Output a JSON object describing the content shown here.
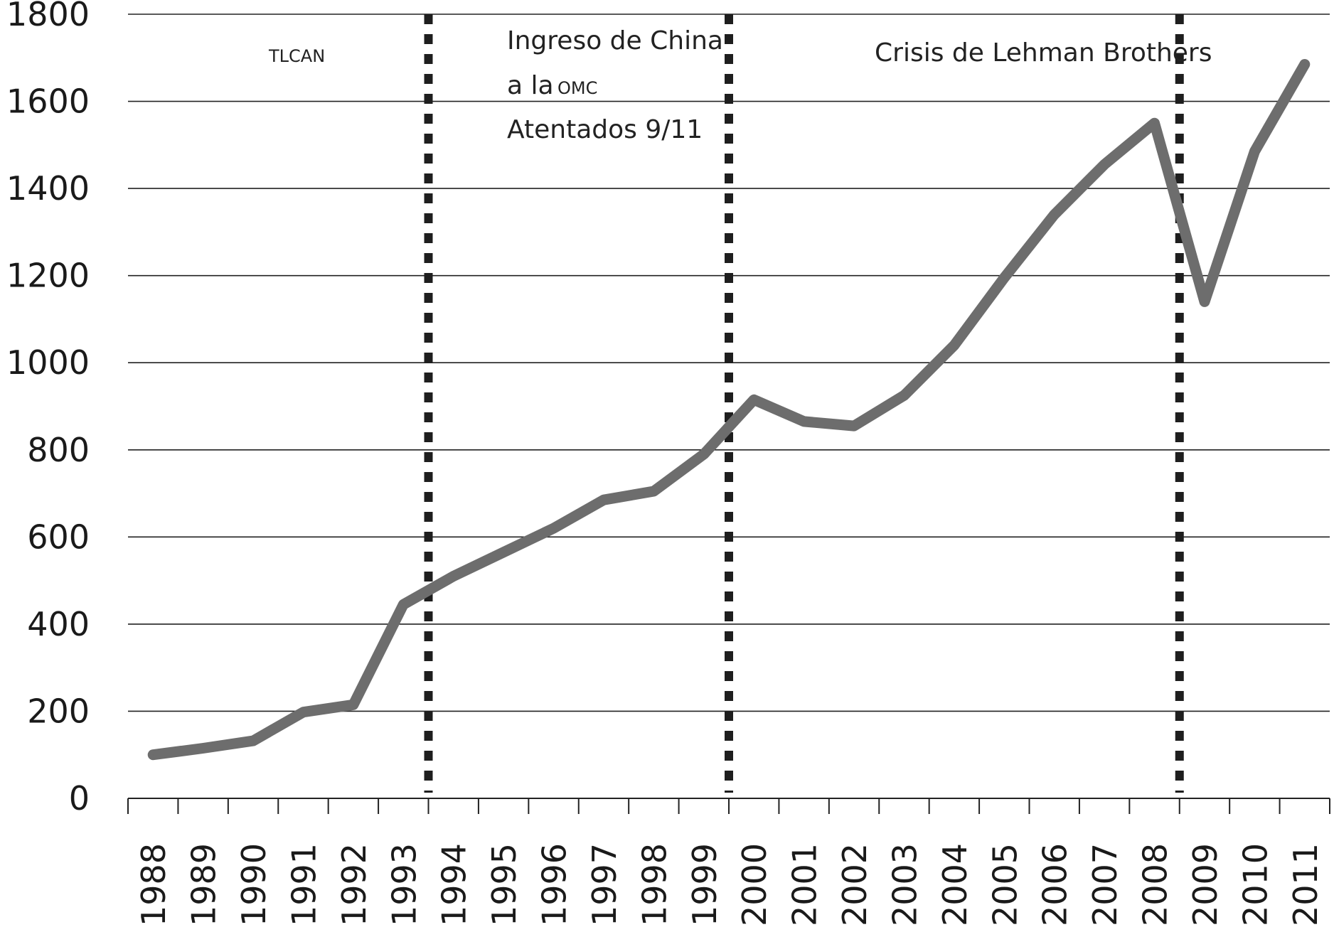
{
  "chart_data": {
    "type": "line",
    "title": "",
    "xlabel": "",
    "ylabel": "",
    "ylim": [
      0,
      1800
    ],
    "yticks": [
      0,
      200,
      400,
      600,
      800,
      1000,
      1200,
      1400,
      1600,
      1800
    ],
    "grid": "horizontal",
    "categories": [
      "1988",
      "1989",
      "1990",
      "1991",
      "1992",
      "1993",
      "1994",
      "1995",
      "1996",
      "1997",
      "1998",
      "1999",
      "2000",
      "2001",
      "2002",
      "2003",
      "2004",
      "2005",
      "2006",
      "2007",
      "2008",
      "2009",
      "2010",
      "2011"
    ],
    "series": [
      {
        "values": [
          100,
          115,
          132,
          198,
          215,
          445,
          510,
          565,
          620,
          685,
          705,
          790,
          915,
          865,
          855,
          925,
          1040,
          1195,
          1340,
          1455,
          1550,
          1140,
          1485,
          1685
        ]
      }
    ],
    "line_color": "#6d6d6d",
    "event_lines": [
      {
        "position": "1993-1994",
        "labels": []
      },
      {
        "position": "1999-2000",
        "labels": []
      },
      {
        "position": "2008-2009",
        "labels": []
      }
    ],
    "annotations": {
      "tlcan": "TLCAN",
      "china_1": "Ingreso de China",
      "china_2": "a la",
      "china_omc": "OMC",
      "attacks": "Atentados 9/11",
      "lehman": "Crisis de Lehman Brothers"
    }
  }
}
